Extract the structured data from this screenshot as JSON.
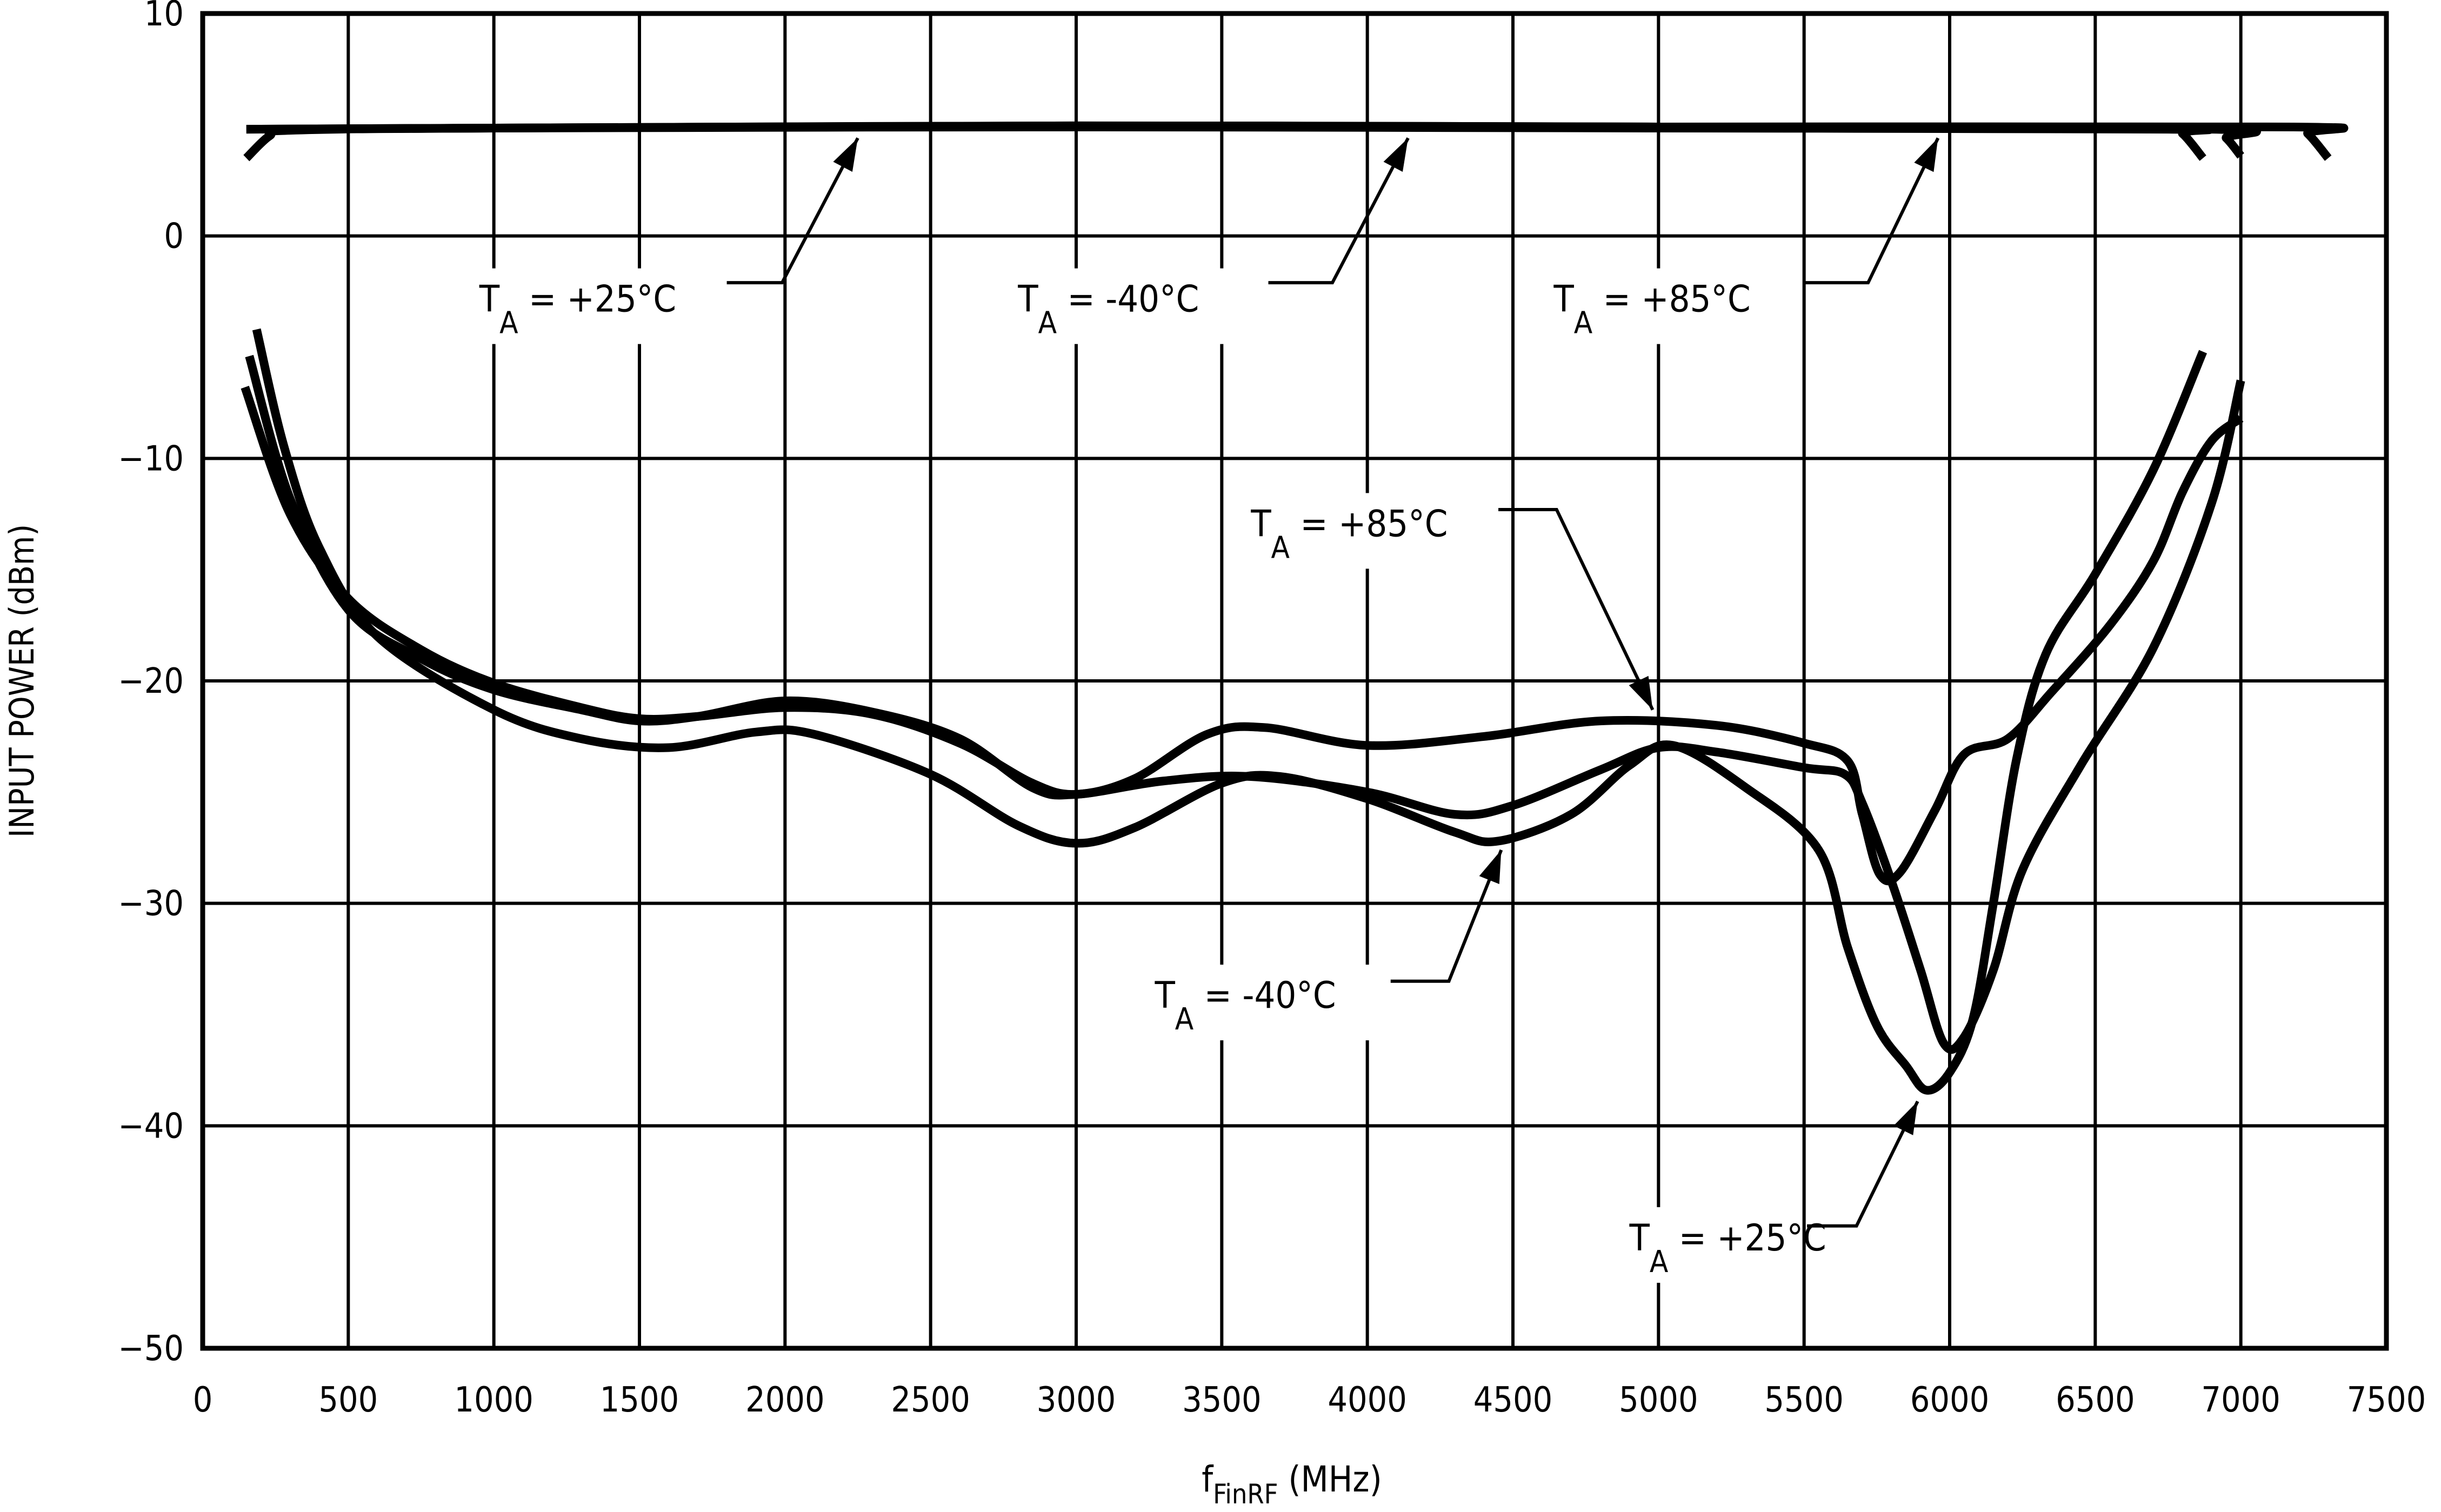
{
  "chart_data": {
    "type": "line",
    "xlabel": {
      "main": "f",
      "sub": "FinRF",
      "rest": " (MHz)"
    },
    "ylabel": "INPUT POWER (dBm)",
    "xlim": [
      0,
      7500
    ],
    "ylim": [
      -50,
      10
    ],
    "x_ticks": [
      0,
      500,
      1000,
      1500,
      2000,
      2500,
      3000,
      3500,
      4000,
      4500,
      5000,
      5500,
      6000,
      6500,
      7000,
      7500
    ],
    "y_ticks": [
      10,
      0,
      -10,
      -20,
      -30,
      -40,
      -50
    ],
    "grid": true,
    "line_color": "#000000",
    "series": [
      {
        "points": [
          [
            150,
            3.5
          ],
          [
            230,
            4.5
          ],
          [
            300,
            4.75
          ],
          [
            1000,
            4.85
          ],
          [
            3000,
            4.9
          ],
          [
            5000,
            4.85
          ],
          [
            6750,
            4.8
          ],
          [
            6800,
            4.6
          ],
          [
            6870,
            3.5
          ]
        ]
      },
      {
        "points": [
          [
            150,
            4.8
          ],
          [
            1000,
            4.85
          ],
          [
            3000,
            4.95
          ],
          [
            5000,
            4.9
          ],
          [
            6900,
            4.8
          ],
          [
            6950,
            4.4
          ],
          [
            7000,
            3.6
          ]
        ]
      },
      {
        "points": [
          [
            150,
            4.8
          ],
          [
            3000,
            4.95
          ],
          [
            5000,
            4.9
          ],
          [
            7180,
            4.9
          ],
          [
            7230,
            4.6
          ],
          [
            7300,
            3.5
          ]
        ]
      },
      {
        "points": [
          [
            145,
            -6.8
          ],
          [
            300,
            -12.5
          ],
          [
            500,
            -16.3
          ],
          [
            750,
            -18.6
          ],
          [
            1000,
            -20.1
          ],
          [
            1300,
            -21.2
          ],
          [
            1500,
            -21.7
          ],
          [
            1700,
            -21.6
          ],
          [
            2000,
            -21.2
          ],
          [
            2300,
            -21.5
          ],
          [
            2600,
            -22.8
          ],
          [
            2850,
            -24.6
          ],
          [
            3000,
            -25.1
          ],
          [
            3200,
            -24.4
          ],
          [
            3450,
            -22.4
          ],
          [
            3650,
            -22.1
          ],
          [
            4000,
            -22.9
          ],
          [
            4400,
            -22.5
          ],
          [
            4800,
            -21.8
          ],
          [
            5200,
            -22
          ],
          [
            5500,
            -22.8
          ],
          [
            5650,
            -23.6
          ],
          [
            5700,
            -26
          ],
          [
            5760,
            -28.7
          ],
          [
            5830,
            -28.6
          ],
          [
            5950,
            -25.8
          ],
          [
            6050,
            -23.3
          ],
          [
            6200,
            -22.6
          ],
          [
            6350,
            -20.5
          ],
          [
            6550,
            -17.5
          ],
          [
            6700,
            -14.6
          ],
          [
            6800,
            -11.5
          ],
          [
            6900,
            -9.2
          ],
          [
            7000,
            -8.2
          ]
        ]
      },
      {
        "points": [
          [
            160,
            -5.4
          ],
          [
            300,
            -11.8
          ],
          [
            500,
            -16.8
          ],
          [
            750,
            -19
          ],
          [
            1000,
            -20.4
          ],
          [
            1300,
            -21.3
          ],
          [
            1500,
            -21.8
          ],
          [
            1700,
            -21.6
          ],
          [
            2000,
            -20.9
          ],
          [
            2300,
            -21.4
          ],
          [
            2600,
            -22.6
          ],
          [
            2850,
            -24.8
          ],
          [
            3000,
            -25.1
          ],
          [
            3300,
            -24.5
          ],
          [
            3600,
            -24.3
          ],
          [
            4000,
            -25
          ],
          [
            4300,
            -26
          ],
          [
            4500,
            -25.6
          ],
          [
            4800,
            -24
          ],
          [
            5000,
            -23
          ],
          [
            5200,
            -23.2
          ],
          [
            5500,
            -23.9
          ],
          [
            5640,
            -24.2
          ],
          [
            5700,
            -25.5
          ],
          [
            5800,
            -29
          ],
          [
            5900,
            -33
          ],
          [
            5980,
            -36.3
          ],
          [
            6050,
            -36
          ],
          [
            6150,
            -33
          ],
          [
            6250,
            -28.5
          ],
          [
            6450,
            -23.8
          ],
          [
            6700,
            -18.5
          ],
          [
            6900,
            -12
          ],
          [
            7000,
            -6.5
          ]
        ]
      },
      {
        "points": [
          [
            185,
            -4.2
          ],
          [
            280,
            -9.5
          ],
          [
            400,
            -14
          ],
          [
            600,
            -18
          ],
          [
            1000,
            -21.3
          ],
          [
            1300,
            -22.6
          ],
          [
            1600,
            -23
          ],
          [
            1900,
            -22.3
          ],
          [
            2100,
            -22.4
          ],
          [
            2500,
            -24.2
          ],
          [
            2800,
            -26.5
          ],
          [
            3000,
            -27.3
          ],
          [
            3200,
            -26.6
          ],
          [
            3500,
            -24.6
          ],
          [
            3700,
            -24.3
          ],
          [
            4000,
            -25.3
          ],
          [
            4300,
            -26.8
          ],
          [
            4450,
            -27.2
          ],
          [
            4700,
            -26
          ],
          [
            4900,
            -23.8
          ],
          [
            5050,
            -22.9
          ],
          [
            5300,
            -24.8
          ],
          [
            5550,
            -27.6
          ],
          [
            5650,
            -32
          ],
          [
            5750,
            -35.5
          ],
          [
            5850,
            -37.3
          ],
          [
            5920,
            -38.4
          ],
          [
            6000,
            -37.6
          ],
          [
            6080,
            -35.2
          ],
          [
            6150,
            -30
          ],
          [
            6230,
            -23.5
          ],
          [
            6330,
            -18.8
          ],
          [
            6500,
            -15.2
          ],
          [
            6700,
            -10.5
          ],
          [
            6870,
            -5.2
          ]
        ]
      }
    ],
    "annotations": [
      {
        "main": "T",
        "sub": "A",
        "rest": " = +25°C"
      },
      {
        "main": "T",
        "sub": "A",
        "rest": " = -40°C"
      },
      {
        "main": "T",
        "sub": "A",
        "rest": " = +85°C"
      },
      {
        "main": "T",
        "sub": "A",
        "rest": " = +85°C"
      },
      {
        "main": "T",
        "sub": "A",
        "rest": " = -40°C"
      },
      {
        "main": "T",
        "sub": "A",
        "rest": " = +25°C"
      }
    ]
  }
}
